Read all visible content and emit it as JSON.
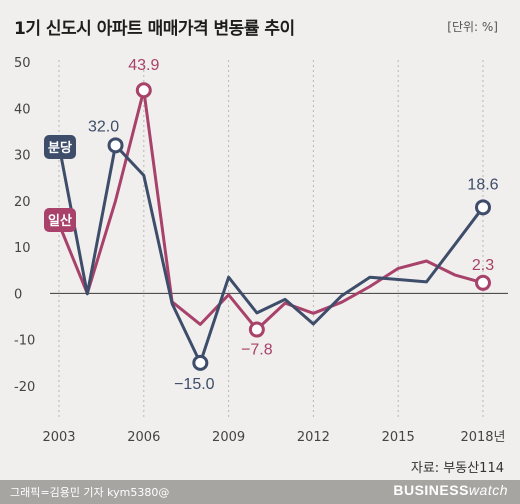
{
  "header": {
    "title": "1기 신도시 아파트 매매가격 변동률 추이",
    "unit": "[단위: %]"
  },
  "source": "자료: 부동산114",
  "footer": {
    "credit": "그래픽=김용민 기자 kym5380@",
    "brand_main": "BUSINESS",
    "brand_sub": "watch"
  },
  "colors": {
    "bundang": "#3d4d6a",
    "ilsan": "#a8426b",
    "background": "#f0efed",
    "footer": "#a7a5a2"
  },
  "chart_data": {
    "type": "line",
    "title": "1기 신도시 아파트 매매가격 변동률 추이",
    "unit": "%",
    "x": [
      2003,
      2004,
      2005,
      2006,
      2007,
      2008,
      2009,
      2010,
      2011,
      2012,
      2013,
      2014,
      2015,
      2016,
      2017,
      2018
    ],
    "x_ticks": [
      2003,
      2006,
      2009,
      2012,
      2015,
      2018
    ],
    "x_tick_labels": [
      "2003",
      "2006",
      "2009",
      "2012",
      "2015",
      "2018년"
    ],
    "y_ticks": [
      -20,
      -10,
      0,
      10,
      20,
      30,
      40,
      50
    ],
    "y_tick_labels": [
      "-20",
      "-10",
      "0",
      "10",
      "20",
      "30",
      "40",
      "50"
    ],
    "ylim": [
      -20,
      50
    ],
    "grid": "vertical dotted at labeled years",
    "series": [
      {
        "name": "분당",
        "color": "#3d4d6a",
        "values": [
          32.0,
          -0.1,
          32.0,
          25.5,
          -2.2,
          -15.0,
          3.5,
          -4.2,
          -1.3,
          -6.6,
          -0.5,
          3.5,
          3.0,
          2.5,
          10.5,
          18.6
        ]
      },
      {
        "name": "일산",
        "color": "#a8426b",
        "values": [
          15.0,
          0.0,
          20.0,
          43.9,
          -1.8,
          -6.7,
          -0.3,
          -7.8,
          -2.1,
          -4.3,
          -1.9,
          1.5,
          5.4,
          7.0,
          4.0,
          2.3
        ]
      }
    ],
    "annotations": [
      {
        "series": "분당",
        "x": 2005,
        "y": 32.0,
        "text": "32.0"
      },
      {
        "series": "일산",
        "x": 2006,
        "y": 43.9,
        "text": "43.9"
      },
      {
        "series": "분당",
        "x": 2008,
        "y": -15.0,
        "text": "−15.0"
      },
      {
        "series": "일산",
        "x": 2010,
        "y": -7.8,
        "text": "−7.8"
      },
      {
        "series": "분당",
        "x": 2018,
        "y": 18.6,
        "text": "18.6"
      },
      {
        "series": "일산",
        "x": 2018,
        "y": 2.3,
        "text": "2.3"
      }
    ]
  }
}
